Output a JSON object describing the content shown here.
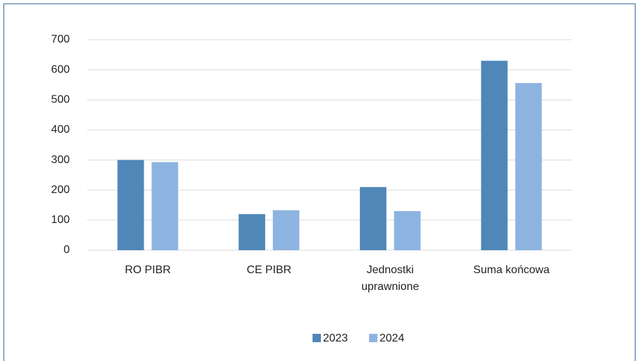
{
  "chart_data": {
    "type": "bar",
    "categories": [
      "RO PIBR",
      "CE PIBR",
      "Jednostki uprawnione",
      "Suma końcowa"
    ],
    "series": [
      {
        "name": "2023",
        "color": "#4f87b9",
        "values": [
          300,
          120,
          210,
          630
        ]
      },
      {
        "name": "2024",
        "color": "#8db4e0",
        "values": [
          293,
          133,
          130,
          556
        ]
      }
    ],
    "ylim": [
      0,
      700
    ],
    "yticks": [
      0,
      100,
      200,
      300,
      400,
      500,
      600,
      700
    ],
    "grid": true,
    "legend": "bottom"
  }
}
